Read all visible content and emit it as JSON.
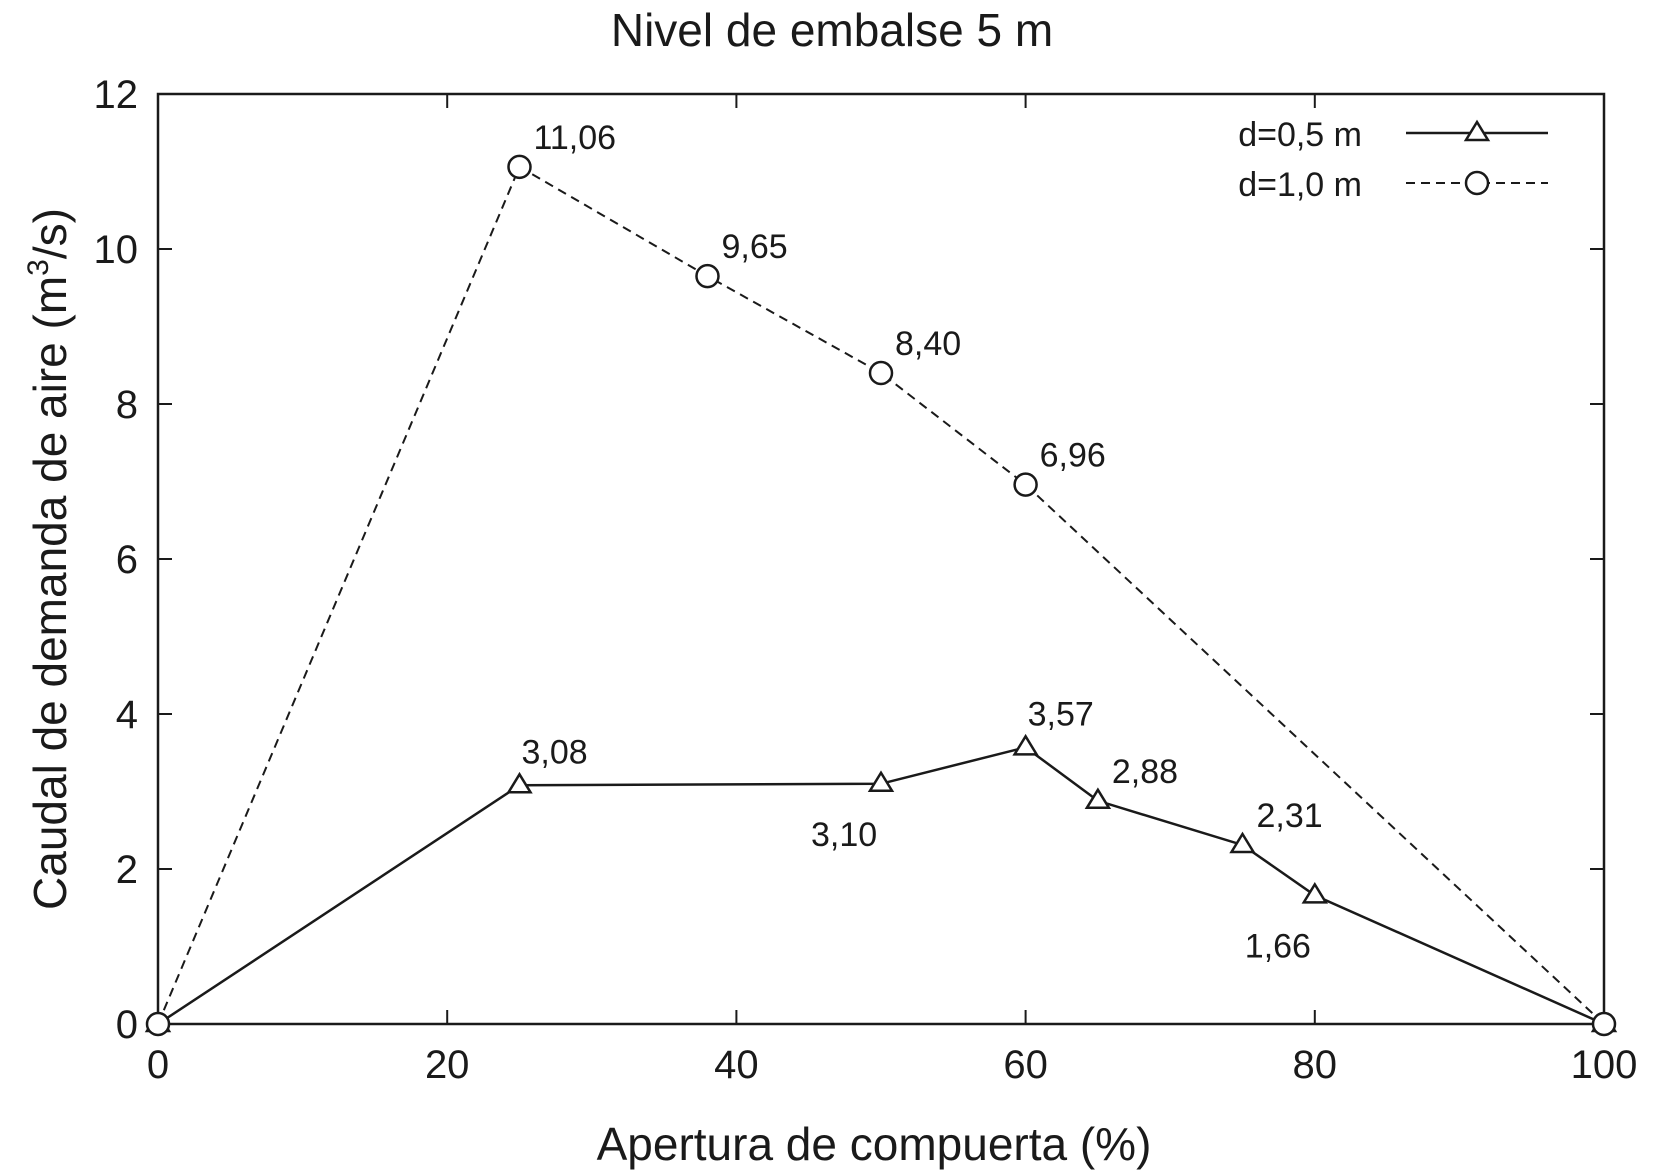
{
  "chart_data": {
    "type": "line",
    "title": "Nivel de embalse 5 m",
    "xlabel": "Apertura de compuerta (%)",
    "ylabel_main": "Caudal de demanda de aire (m",
    "ylabel_sup": "3",
    "ylabel_end": "/s)",
    "xlim": [
      0,
      100
    ],
    "ylim": [
      0,
      12
    ],
    "xticks": [
      0,
      20,
      40,
      60,
      80,
      100
    ],
    "yticks": [
      0,
      2,
      4,
      6,
      8,
      10,
      12
    ],
    "xtick_labels": [
      "0",
      "20",
      "40",
      "60",
      "80",
      "100"
    ],
    "ytick_labels": [
      "0",
      "2",
      "4",
      "6",
      "8",
      "10",
      "12"
    ],
    "legend_position": "top-right",
    "series": [
      {
        "name": "d=0,5 m",
        "marker": "triangle",
        "line_style": "solid",
        "x": [
          0,
          25,
          50,
          60,
          65,
          75,
          80,
          100
        ],
        "y": [
          0,
          3.08,
          3.1,
          3.57,
          2.88,
          2.31,
          1.66,
          0
        ],
        "labels": [
          "",
          "3,08",
          "3,10",
          "3,57",
          "2,88",
          "2,31",
          "1,66",
          ""
        ],
        "label_pos": [
          "",
          "above",
          "below",
          "above",
          "above-right",
          "above-right",
          "below",
          ""
        ]
      },
      {
        "name": "d=1,0 m",
        "marker": "circle",
        "line_style": "dashed",
        "x": [
          0,
          25,
          38,
          50,
          60,
          100
        ],
        "y": [
          0,
          11.06,
          9.65,
          8.4,
          6.96,
          0
        ],
        "labels": [
          "",
          "11,06",
          "9,65",
          "8,40",
          "6,96",
          ""
        ],
        "label_pos": [
          "",
          "above-right",
          "above-right",
          "above-right",
          "above-right",
          ""
        ]
      }
    ]
  }
}
